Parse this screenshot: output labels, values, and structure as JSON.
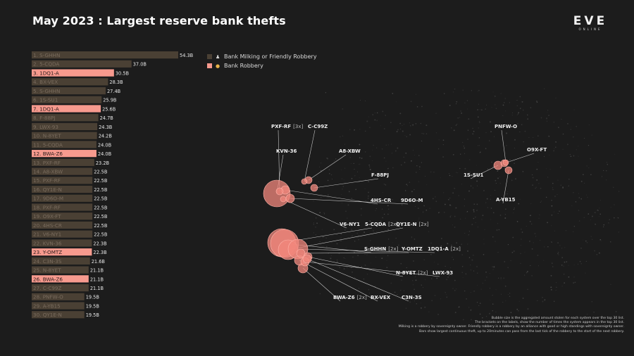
{
  "title": "May 2023 : Largest reserve bank thefts",
  "logo": {
    "main": "EVE",
    "sub": "ONLINE"
  },
  "legend": [
    {
      "label": "Bank Milking or Friendly Robbery",
      "color": "#4a4034",
      "icon": "person-icon"
    },
    {
      "label": "Bank Robbery",
      "color": "#f79a8e",
      "icon": "money-bag-icon"
    }
  ],
  "colors": {
    "milking": "#4a4034",
    "robbery": "#f79a8e",
    "bubble": "#f2877c",
    "background": "#1c1c1c"
  },
  "chart_data": [
    {
      "type": "bar",
      "orientation": "horizontal",
      "categories": [
        "1. S-GHHN",
        "2. 5-CQDA",
        "3. 1DQ1-A",
        "4. BX-VEX",
        "5. S-GHHN",
        "6. 1S-SU1",
        "7. 1DQ1-A",
        "8. F-88PJ",
        "9. LWX-93",
        "10. N-8YET",
        "11. 5-CQDA",
        "12. BWA-Z6",
        "13. PXF-RF",
        "14. A8-XBW",
        "15. PXF-RF",
        "16. QY1E-N",
        "17. 9D6O-M",
        "18. PXF-RF",
        "19. O9X-FT",
        "20. 4HS-CR",
        "21. V6-NY1",
        "22. KVN-36",
        "23. Y-OMTZ",
        "24. C3N-3S",
        "25. N-8YET",
        "26. BWA-Z6",
        "27. C-C99Z",
        "28. PNFW-O",
        "29. A-YB15",
        "30. QY1E-N"
      ],
      "values": [
        54.3,
        37.0,
        30.5,
        28.3,
        27.4,
        25.9,
        25.6,
        24.7,
        24.3,
        24.2,
        24.0,
        24.0,
        23.2,
        22.5,
        22.5,
        22.5,
        22.5,
        22.5,
        22.5,
        22.5,
        22.5,
        22.3,
        22.3,
        21.6,
        21.1,
        21.1,
        21.1,
        19.5,
        19.5,
        19.5
      ],
      "value_labels": [
        "54.3B",
        "37.0B",
        "30.5B",
        "28.3B",
        "27.4B",
        "25.9B",
        "25.6B",
        "24.7B",
        "24.3B",
        "24.2B",
        "24.0B",
        "24.0B",
        "23.2B",
        "22.5B",
        "22.5B",
        "22.5B",
        "22.5B",
        "22.5B",
        "22.5B",
        "22.5B",
        "22.5B",
        "22.3B",
        "22.3B",
        "21.6B",
        "21.1B",
        "21.1B",
        "21.1B",
        "19.5B",
        "19.5B",
        "19.5B"
      ],
      "robbery": [
        false,
        false,
        true,
        false,
        false,
        false,
        true,
        false,
        false,
        false,
        false,
        true,
        false,
        false,
        false,
        false,
        false,
        false,
        false,
        false,
        false,
        false,
        true,
        false,
        false,
        true,
        false,
        false,
        false,
        false
      ]
    },
    {
      "type": "bubble-map",
      "systems": [
        {
          "name": "PXF-RF",
          "count": "[3x]"
        },
        {
          "name": "C-C99Z",
          "count": ""
        },
        {
          "name": "KVN-36",
          "count": ""
        },
        {
          "name": "A8-XBW",
          "count": ""
        },
        {
          "name": "F-88PJ",
          "count": ""
        },
        {
          "name": "4HS-CR",
          "count": ""
        },
        {
          "name": "9D6O-M",
          "count": ""
        },
        {
          "name": "V6-NY1",
          "count": ""
        },
        {
          "name": "5-CQDA",
          "count": "[2x]"
        },
        {
          "name": "QY1E-N",
          "count": "[2x]"
        },
        {
          "name": "S-GHHN",
          "count": "[2x]"
        },
        {
          "name": "Y-OMTZ",
          "count": ""
        },
        {
          "name": "1DQ1-A",
          "count": "[2x]"
        },
        {
          "name": "N-8YET",
          "count": "[2x]"
        },
        {
          "name": "LWX-93",
          "count": ""
        },
        {
          "name": "BWA-Z6",
          "count": "[2x]"
        },
        {
          "name": "BX-VEX",
          "count": ""
        },
        {
          "name": "C3N-3S",
          "count": ""
        },
        {
          "name": "PNFW-O",
          "count": ""
        },
        {
          "name": "O9X-FT",
          "count": ""
        },
        {
          "name": "1S-SU1",
          "count": ""
        },
        {
          "name": "A-YB15",
          "count": ""
        }
      ]
    }
  ],
  "notes": [
    "Bubble size is the aggregated amount stolen for each system over the top 30 list.",
    "The brackets on the labels, show the number of times the system appears in the top 30 list.",
    "Milking is a robbery by sovereignty owner. Friendly robbery is a robbery by an alliance with good or high standings with sovereignty owner.",
    "Bars show largest continuous theft, up to 20minutes can pass from the last tick of the robbery to the start of the next robbery."
  ]
}
